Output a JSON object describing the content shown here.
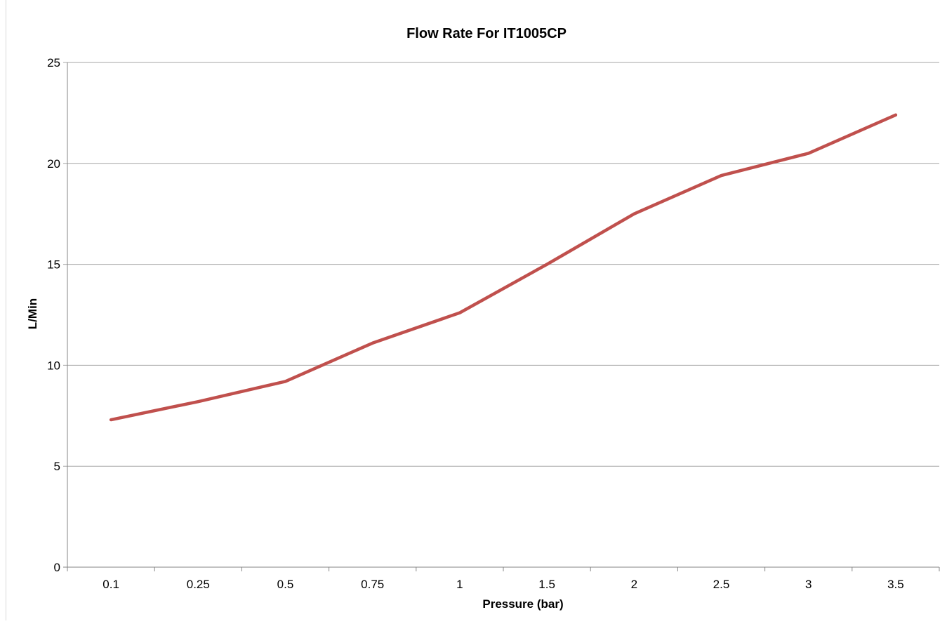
{
  "chart_data": {
    "type": "line",
    "title": "Flow Rate For IT1005CP",
    "xlabel": "Pressure (bar)",
    "ylabel": "L/Min",
    "categories": [
      "0.1",
      "0.25",
      "0.5",
      "0.75",
      "1",
      "1.5",
      "2",
      "2.5",
      "3",
      "3.5"
    ],
    "series": [
      {
        "values": [
          7.3,
          8.2,
          9.2,
          11.1,
          12.6,
          15.0,
          17.5,
          19.4,
          20.5,
          22.4
        ],
        "color": "#c0504d"
      }
    ],
    "ylim": [
      0,
      25
    ],
    "yticks": [
      "0",
      "5",
      "10",
      "15",
      "20",
      "25"
    ],
    "grid": true,
    "legend": "none"
  }
}
